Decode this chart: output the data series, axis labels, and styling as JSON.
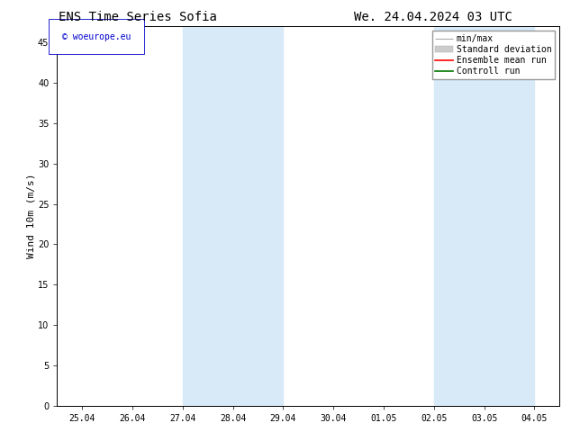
{
  "title_left": "ENS Time Series Sofia",
  "title_right": "We. 24.04.2024 03 UTC",
  "ylabel": "Wind 10m (m/s)",
  "watermark": "© woeurope.eu",
  "ylim": [
    0,
    47
  ],
  "yticks": [
    0,
    5,
    10,
    15,
    20,
    25,
    30,
    35,
    40,
    45
  ],
  "x_tick_labels": [
    "25.04",
    "26.04",
    "27.04",
    "28.04",
    "29.04",
    "30.04",
    "01.05",
    "02.05",
    "03.05",
    "04.05"
  ],
  "shaded_regions": [
    {
      "start": 2.0,
      "end": 4.0
    },
    {
      "start": 7.0,
      "end": 9.0
    }
  ],
  "shade_color": "#d8eaf8",
  "background_color": "#ffffff",
  "plot_bg_color": "#ffffff",
  "border_color": "#000000",
  "title_fontsize": 10,
  "label_fontsize": 8,
  "tick_fontsize": 7,
  "watermark_color": "#0000cc",
  "watermark_fontsize": 7,
  "legend_fontsize": 7
}
